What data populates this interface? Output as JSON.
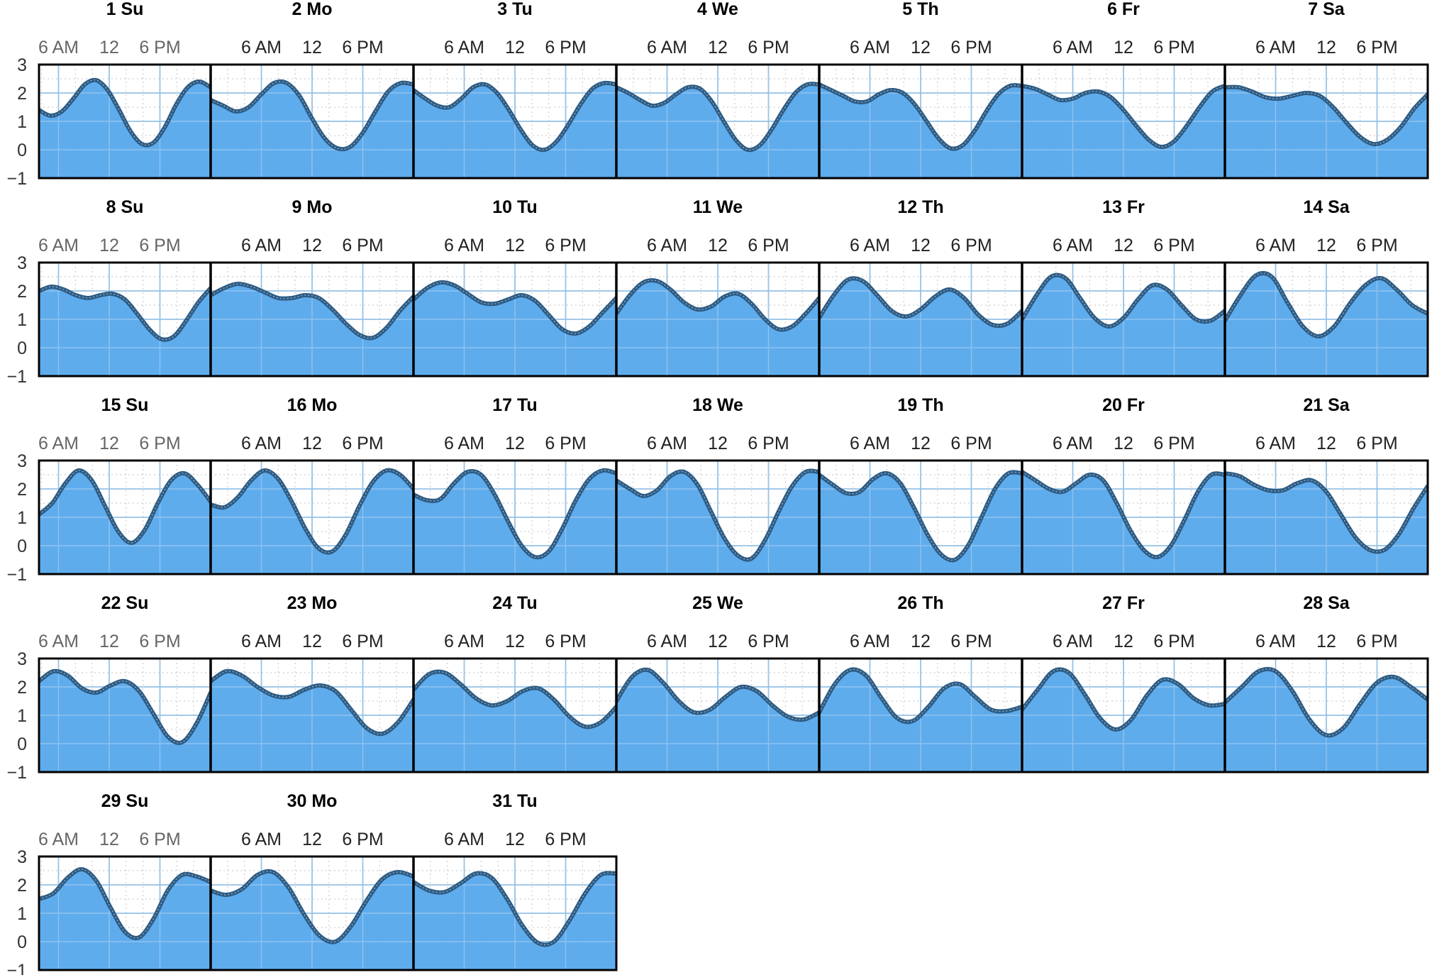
{
  "chart_data": {
    "type": "area",
    "title": "",
    "xlabel": "",
    "ylabel": "",
    "ylim": [
      -1,
      3
    ],
    "y_ticks": [
      "3",
      "2",
      "1",
      "0",
      "−1"
    ],
    "x_tick_labels": [
      "6 AM",
      "12",
      "6 PM"
    ],
    "grid": true,
    "fill_color": "#5aa9ec",
    "line_color": "#2d5c85",
    "days": [
      {
        "label": "1 Su",
        "values": [
          1.4,
          1.2,
          1.35,
          1.8,
          2.3,
          2.45,
          2.1,
          1.4,
          0.65,
          0.2,
          0.25,
          0.8,
          1.6,
          2.2,
          2.4,
          2.2
        ]
      },
      {
        "label": "2 Mo",
        "values": [
          1.75,
          1.55,
          1.35,
          1.5,
          1.95,
          2.35,
          2.35,
          1.9,
          1.1,
          0.4,
          0.05,
          0.1,
          0.6,
          1.35,
          2.05,
          2.35,
          2.3
        ]
      },
      {
        "label": "3 Tu",
        "values": [
          2.1,
          1.8,
          1.55,
          1.5,
          1.8,
          2.2,
          2.3,
          2.0,
          1.4,
          0.7,
          0.15,
          0.0,
          0.3,
          0.9,
          1.6,
          2.15,
          2.35,
          2.3
        ]
      },
      {
        "label": "4 We",
        "values": [
          2.2,
          2.0,
          1.75,
          1.55,
          1.65,
          1.95,
          2.2,
          2.15,
          1.7,
          1.0,
          0.35,
          0.0,
          0.15,
          0.7,
          1.4,
          2.0,
          2.3,
          2.3
        ]
      },
      {
        "label": "5 Th",
        "values": [
          2.3,
          2.1,
          1.9,
          1.7,
          1.7,
          1.95,
          2.1,
          2.0,
          1.6,
          1.0,
          0.4,
          0.05,
          0.15,
          0.65,
          1.35,
          1.95,
          2.25,
          2.25
        ]
      },
      {
        "label": "6 Fr",
        "values": [
          2.25,
          2.15,
          1.95,
          1.75,
          1.8,
          2.0,
          2.05,
          1.85,
          1.4,
          0.85,
          0.35,
          0.1,
          0.3,
          0.85,
          1.5,
          2.05,
          2.25
        ]
      },
      {
        "label": "7 Sa",
        "values": [
          2.2,
          2.2,
          2.05,
          1.85,
          1.8,
          1.9,
          2.0,
          1.9,
          1.5,
          0.95,
          0.45,
          0.2,
          0.35,
          0.8,
          1.45,
          1.95
        ]
      },
      {
        "label": "8 Su",
        "values": [
          2.0,
          2.15,
          2.05,
          1.85,
          1.75,
          1.85,
          1.9,
          1.7,
          1.2,
          0.65,
          0.3,
          0.4,
          0.95,
          1.6,
          2.1
        ]
      },
      {
        "label": "9 Mo",
        "values": [
          1.85,
          2.1,
          2.25,
          2.15,
          1.95,
          1.75,
          1.75,
          1.85,
          1.75,
          1.35,
          0.85,
          0.45,
          0.35,
          0.7,
          1.3,
          1.8
        ]
      },
      {
        "label": "10 Tu",
        "values": [
          1.7,
          2.1,
          2.3,
          2.2,
          1.9,
          1.6,
          1.55,
          1.7,
          1.85,
          1.65,
          1.15,
          0.65,
          0.5,
          0.75,
          1.25,
          1.75
        ]
      },
      {
        "label": "11 We",
        "values": [
          1.2,
          1.85,
          2.3,
          2.35,
          2.05,
          1.6,
          1.35,
          1.45,
          1.8,
          1.9,
          1.55,
          1.0,
          0.65,
          0.75,
          1.2,
          1.75
        ]
      },
      {
        "label": "12 Th",
        "values": [
          1.05,
          1.85,
          2.4,
          2.35,
          1.85,
          1.3,
          1.1,
          1.35,
          1.8,
          2.05,
          1.75,
          1.15,
          0.8,
          0.85,
          1.3
        ]
      },
      {
        "label": "13 Fr",
        "values": [
          1.0,
          1.85,
          2.5,
          2.45,
          1.75,
          1.05,
          0.75,
          1.05,
          1.7,
          2.2,
          2.05,
          1.5,
          1.0,
          0.95,
          1.3
        ]
      },
      {
        "label": "14 Sa",
        "values": [
          0.95,
          1.85,
          2.55,
          2.5,
          1.6,
          0.75,
          0.4,
          0.75,
          1.55,
          2.2,
          2.45,
          2.05,
          1.5,
          1.2
        ]
      },
      {
        "label": "15 Su",
        "values": [
          1.1,
          1.5,
          2.2,
          2.65,
          2.3,
          1.4,
          0.5,
          0.1,
          0.55,
          1.5,
          2.3,
          2.55,
          2.15,
          1.55
        ]
      },
      {
        "label": "16 Mo",
        "values": [
          1.45,
          1.35,
          1.7,
          2.3,
          2.65,
          2.35,
          1.55,
          0.6,
          -0.1,
          -0.2,
          0.4,
          1.4,
          2.25,
          2.65,
          2.5,
          2.0
        ]
      },
      {
        "label": "17 Tu",
        "values": [
          1.8,
          1.6,
          1.65,
          2.2,
          2.6,
          2.5,
          1.8,
          0.85,
          0.0,
          -0.4,
          -0.2,
          0.6,
          1.6,
          2.35,
          2.65,
          2.55
        ]
      },
      {
        "label": "18 We",
        "values": [
          2.3,
          2.0,
          1.75,
          1.95,
          2.45,
          2.6,
          2.15,
          1.2,
          0.25,
          -0.35,
          -0.45,
          0.2,
          1.2,
          2.1,
          2.6,
          2.6
        ]
      },
      {
        "label": "19 Th",
        "values": [
          2.5,
          2.15,
          1.85,
          1.9,
          2.35,
          2.55,
          2.2,
          1.35,
          0.4,
          -0.3,
          -0.5,
          0.0,
          1.0,
          2.0,
          2.55,
          2.55
        ]
      },
      {
        "label": "20 Fr",
        "values": [
          2.6,
          2.3,
          2.0,
          1.9,
          2.2,
          2.5,
          2.3,
          1.5,
          0.55,
          -0.15,
          -0.4,
          0.0,
          0.9,
          1.9,
          2.5,
          2.5
        ]
      },
      {
        "label": "21 Sa",
        "values": [
          2.55,
          2.45,
          2.15,
          1.95,
          1.95,
          2.2,
          2.3,
          1.9,
          1.1,
          0.3,
          -0.15,
          -0.15,
          0.4,
          1.3,
          2.1
        ]
      },
      {
        "label": "22 Su",
        "values": [
          2.2,
          2.55,
          2.4,
          1.95,
          1.8,
          2.05,
          2.2,
          1.85,
          1.05,
          0.25,
          0.05,
          0.7,
          1.8
        ]
      },
      {
        "label": "23 Mo",
        "values": [
          2.2,
          2.55,
          2.4,
          2.0,
          1.7,
          1.65,
          1.9,
          2.05,
          1.85,
          1.2,
          0.55,
          0.35,
          0.75,
          1.55
        ]
      },
      {
        "label": "24 Tu",
        "values": [
          1.9,
          2.45,
          2.5,
          2.1,
          1.6,
          1.35,
          1.5,
          1.85,
          1.95,
          1.55,
          0.95,
          0.6,
          0.75,
          1.3
        ]
      },
      {
        "label": "25 We",
        "values": [
          1.5,
          2.35,
          2.6,
          2.15,
          1.5,
          1.1,
          1.2,
          1.65,
          2.0,
          1.85,
          1.35,
          0.95,
          0.85,
          1.1
        ]
      },
      {
        "label": "26 Th",
        "values": [
          1.1,
          2.1,
          2.6,
          2.4,
          1.6,
          0.9,
          0.8,
          1.3,
          1.95,
          2.1,
          1.65,
          1.2,
          1.15,
          1.3
        ]
      },
      {
        "label": "27 Fr",
        "values": [
          1.2,
          1.9,
          2.55,
          2.5,
          1.75,
          0.9,
          0.5,
          0.85,
          1.7,
          2.25,
          2.1,
          1.6,
          1.35,
          1.4
        ]
      },
      {
        "label": "28 Sa",
        "values": [
          1.45,
          2.0,
          2.55,
          2.55,
          1.85,
          0.85,
          0.3,
          0.55,
          1.4,
          2.15,
          2.35,
          2.0,
          1.55
        ]
      },
      {
        "label": "29 Su",
        "values": [
          1.5,
          1.7,
          2.25,
          2.55,
          2.15,
          1.2,
          0.35,
          0.15,
          0.8,
          1.8,
          2.35,
          2.3,
          2.1
        ]
      },
      {
        "label": "30 Mo",
        "values": [
          1.8,
          1.65,
          1.85,
          2.35,
          2.45,
          1.9,
          0.95,
          0.2,
          0.0,
          0.55,
          1.45,
          2.2,
          2.45,
          2.3
        ]
      },
      {
        "label": "31 Tu",
        "values": [
          2.1,
          1.8,
          1.75,
          2.05,
          2.4,
          2.25,
          1.5,
          0.55,
          -0.05,
          0.0,
          0.75,
          1.7,
          2.35,
          2.4
        ]
      }
    ]
  }
}
